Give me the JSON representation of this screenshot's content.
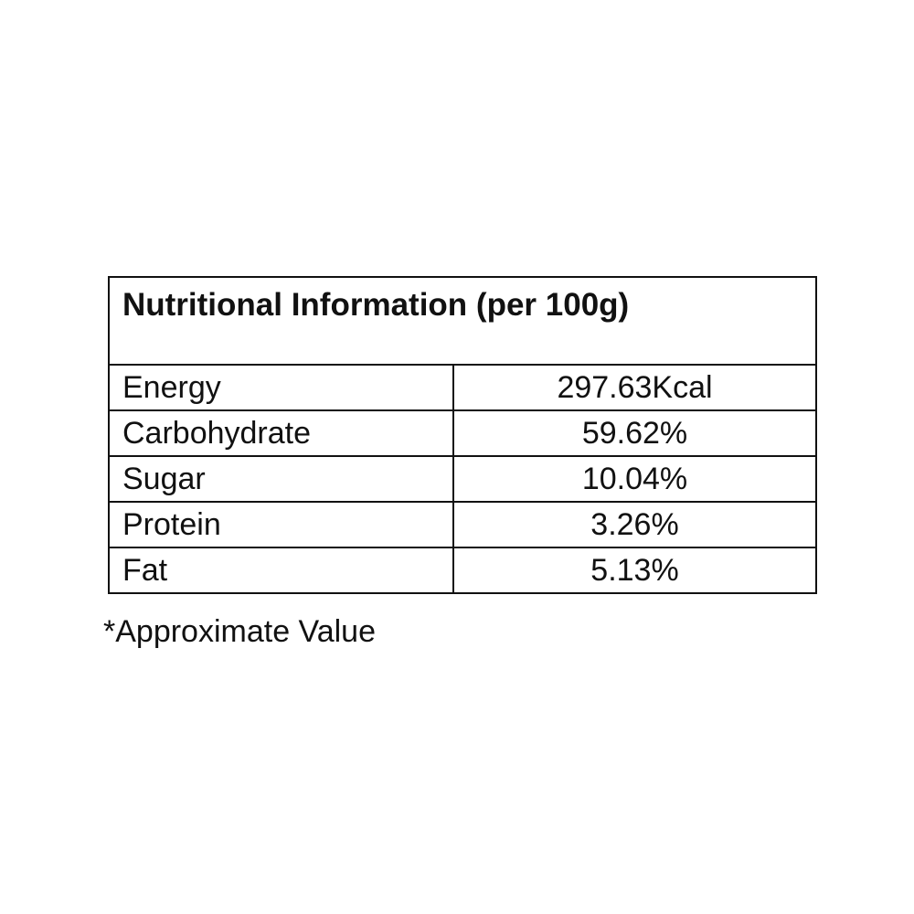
{
  "table": {
    "title": "Nutritional Information (per 100g)",
    "rows": [
      [
        "Energy",
        "297.63Kcal"
      ],
      [
        "Carbohydrate",
        "59.62%"
      ],
      [
        "Sugar",
        "10.04%"
      ],
      [
        "Protein",
        "3.26%"
      ],
      [
        "Fat",
        "5.13%"
      ]
    ]
  },
  "footnote": "*Approximate Value"
}
